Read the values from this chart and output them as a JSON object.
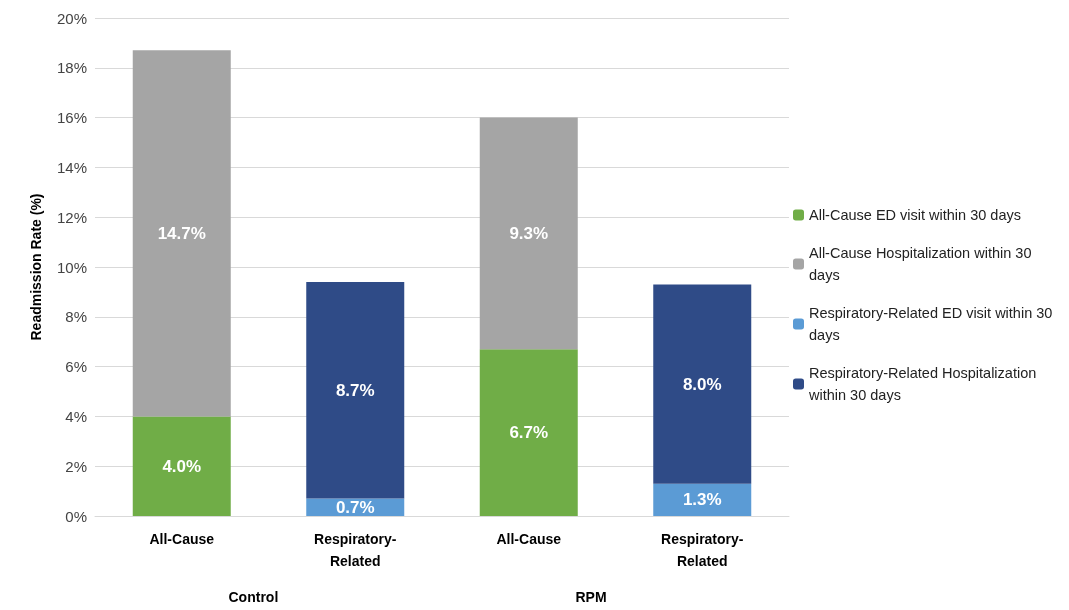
{
  "chart_data": {
    "type": "bar",
    "stacked": true,
    "ylabel": "Readmission Rate (%)",
    "categories": [
      "All-Cause",
      "Respiratory-Related",
      "All-Cause",
      "Respiratory-Related"
    ],
    "series": [
      {
        "name": "All-Cause ED visit within 30 days",
        "color": "#70ad47",
        "values": [
          4.0,
          null,
          6.7,
          null
        ],
        "value_labels": [
          "4.0%",
          null,
          "6.7%",
          null
        ]
      },
      {
        "name": "All-Cause Hospitalization within 30 days",
        "color": "#a5a5a5",
        "values": [
          14.7,
          null,
          9.3,
          null
        ],
        "value_labels": [
          "14.7%",
          null,
          "9.3%",
          null
        ]
      },
      {
        "name": "Respiratory-Related ED visit within 30 days",
        "color": "#5b9bd5",
        "values": [
          null,
          0.7,
          null,
          1.3
        ],
        "value_labels": [
          null,
          "0.7%",
          null,
          "1.3%"
        ]
      },
      {
        "name": "Respiratory-Related Hospitalization within 30 days",
        "color": "#2f4b87",
        "values": [
          null,
          8.7,
          null,
          8.0
        ],
        "value_labels": [
          null,
          "8.7%",
          null,
          "8.0%"
        ]
      }
    ],
    "ylim": [
      0,
      20
    ],
    "yticks": [
      {
        "value": 0,
        "label": "0%"
      },
      {
        "value": 2,
        "label": "2%"
      },
      {
        "value": 4,
        "label": "4%"
      },
      {
        "value": 6,
        "label": "6%"
      },
      {
        "value": 8,
        "label": "8%"
      },
      {
        "value": 10,
        "label": "10%"
      },
      {
        "value": 12,
        "label": "12%"
      },
      {
        "value": 14,
        "label": "14%"
      },
      {
        "value": 16,
        "label": "16%"
      },
      {
        "value": 18,
        "label": "18%"
      },
      {
        "value": 20,
        "label": "20%"
      }
    ],
    "grid": "y",
    "legend": "right",
    "annotations": [
      "Control",
      "RPM"
    ]
  }
}
